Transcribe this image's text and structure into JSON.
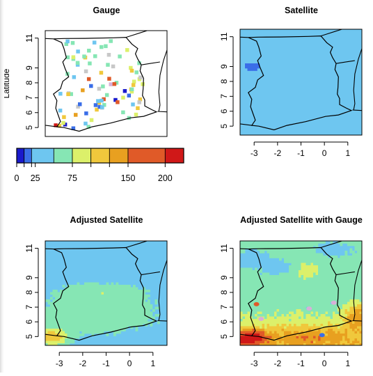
{
  "chart_data": [
    {
      "type": "heatmap",
      "title": "Gauge",
      "ylabel": "Latitude",
      "xlim": [
        -3.6,
        1.6
      ],
      "ylim": [
        4.4,
        11.5
      ],
      "yticks": [
        5,
        6,
        7,
        8,
        9,
        11
      ],
      "show_x_axis": false,
      "field": "gauge-points"
    },
    {
      "type": "heatmap",
      "title": "Satellite",
      "xlim": [
        -3.6,
        1.6
      ],
      "ylim": [
        4.4,
        11.5
      ],
      "xticks": [
        -3,
        -2,
        -1,
        0,
        1
      ],
      "yticks": [
        5,
        6,
        7,
        8,
        9,
        11
      ],
      "show_x_axis": true,
      "field": "satellite"
    },
    {
      "type": "heatmap",
      "title": "Adjusted Satellite",
      "xlim": [
        -3.6,
        1.6
      ],
      "ylim": [
        4.4,
        11.5
      ],
      "xticks": [
        -3,
        -2,
        -1,
        0,
        1
      ],
      "yticks": [
        5,
        6,
        7,
        8,
        9,
        11
      ],
      "show_x_axis": true,
      "field": "adjusted"
    },
    {
      "type": "heatmap",
      "title": "Adjusted Satellite with Gauge",
      "xlim": [
        -3.6,
        1.6
      ],
      "ylim": [
        4.4,
        11.5
      ],
      "xticks": [
        -3,
        -2,
        -1,
        0,
        1
      ],
      "yticks": [
        5,
        6,
        7,
        8,
        9,
        11
      ],
      "show_x_axis": true,
      "field": "adjusted-gauge"
    }
  ],
  "legend": {
    "breaks": [
      0,
      10,
      20,
      50,
      75,
      100,
      125,
      150,
      200,
      225
    ],
    "colors": [
      "#1a1acc",
      "#3a6ee8",
      "#6ec6f0",
      "#86e6b4",
      "#dcf06a",
      "#f0c83c",
      "#e8a020",
      "#e05a28",
      "#d01818"
    ],
    "tick_labels": [
      {
        "value": 0,
        "label": "0"
      },
      {
        "value": 25,
        "label": "25"
      },
      {
        "value": 75,
        "label": "75"
      },
      {
        "value": 150,
        "label": "150"
      },
      {
        "value": 200,
        "label": "200"
      }
    ],
    "minor_ticks": [
      10,
      20,
      100,
      125
    ]
  },
  "boundary_lonlat": [
    [
      -3.25,
      10.95
    ],
    [
      -2.8,
      10.97
    ],
    [
      -1.9,
      10.98
    ],
    [
      -0.7,
      11.02
    ],
    [
      -0.15,
      11.05
    ],
    [
      0.1,
      10.6
    ],
    [
      0.35,
      10.3
    ],
    [
      0.25,
      9.95
    ],
    [
      0.35,
      9.6
    ],
    [
      0.5,
      9.2
    ],
    [
      0.45,
      8.8
    ],
    [
      0.6,
      8.3
    ],
    [
      0.58,
      7.6
    ],
    [
      0.55,
      7.15
    ],
    [
      0.65,
      6.85
    ],
    [
      0.65,
      6.45
    ],
    [
      0.95,
      6.2
    ],
    [
      1.15,
      6.05
    ],
    [
      0.6,
      5.75
    ],
    [
      0.05,
      5.65
    ],
    [
      -0.8,
      5.3
    ],
    [
      -1.6,
      5.05
    ],
    [
      -2.15,
      4.75
    ],
    [
      -2.8,
      5.0
    ],
    [
      -3.1,
      5.05
    ],
    [
      -2.95,
      5.4
    ],
    [
      -3.05,
      5.85
    ],
    [
      -3.15,
      6.3
    ],
    [
      -3.1,
      6.8
    ],
    [
      -3.25,
      7.25
    ],
    [
      -2.95,
      7.6
    ],
    [
      -2.85,
      8.1
    ],
    [
      -2.6,
      8.4
    ],
    [
      -2.75,
      8.95
    ],
    [
      -2.85,
      9.4
    ],
    [
      -2.7,
      9.7
    ],
    [
      -2.8,
      10.3
    ],
    [
      -2.9,
      10.7
    ],
    [
      -3.25,
      10.95
    ]
  ],
  "neighbor_borders": [
    [
      [
        -3.6,
        10.97
      ],
      [
        -3.25,
        10.95
      ]
    ],
    [
      [
        -3.6,
        5.15
      ],
      [
        -3.1,
        5.05
      ]
    ],
    [
      [
        -0.15,
        11.05
      ],
      [
        0.05,
        11.15
      ],
      [
        0.45,
        11.35
      ],
      [
        0.75,
        11.5
      ]
    ],
    [
      [
        1.25,
        6.1
      ],
      [
        1.3,
        6.5
      ],
      [
        1.25,
        7.4
      ],
      [
        1.3,
        8.5
      ],
      [
        1.45,
        9.5
      ],
      [
        1.6,
        10.2
      ]
    ],
    [
      [
        0.5,
        9.2
      ],
      [
        0.9,
        9.3
      ],
      [
        1.3,
        9.4
      ]
    ],
    [
      [
        1.2,
        6.08
      ],
      [
        1.6,
        6.05
      ]
    ]
  ]
}
